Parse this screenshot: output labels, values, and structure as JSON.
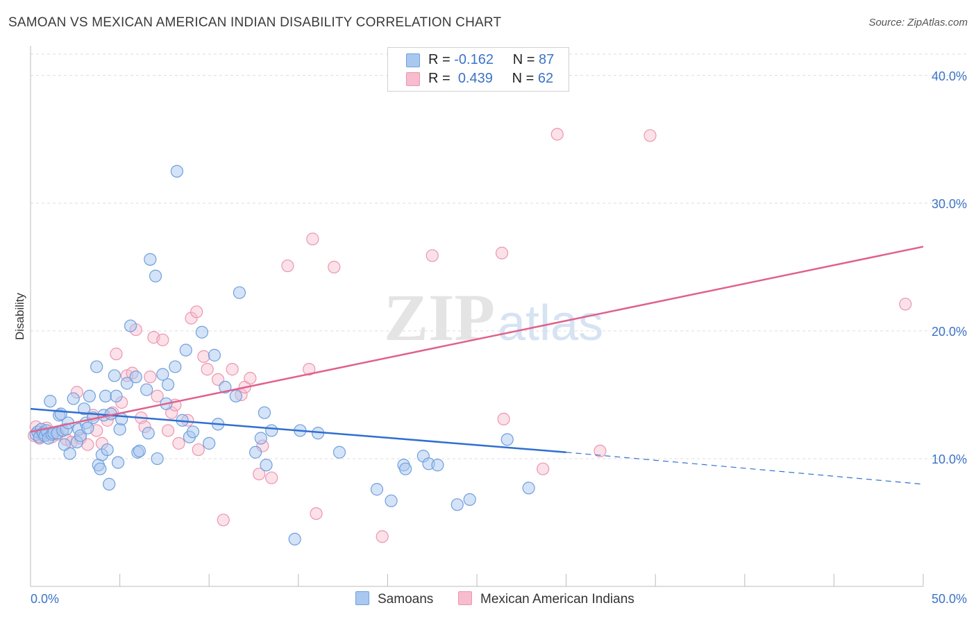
{
  "title": "SAMOAN VS MEXICAN AMERICAN INDIAN DISABILITY CORRELATION CHART",
  "source": "Source: ZipAtlas.com",
  "watermark": {
    "zip": "ZIP",
    "atlas": "atlas"
  },
  "legend": {
    "samoan": {
      "r_label": "R =",
      "r_value": "-0.162",
      "n_label": "N =",
      "n_value": "87"
    },
    "mexican": {
      "r_label": "R =",
      "r_value": "0.439",
      "n_label": "N =",
      "n_value": "62"
    }
  },
  "colors": {
    "samoan_fill": "#a9c8f0",
    "samoan_stroke": "#6f9fdc",
    "samoan_line": "#2f6fd0",
    "mexican_fill": "#f7bccd",
    "mexican_stroke": "#ec95b0",
    "mexican_line": "#e0608c",
    "tick_label": "#3b73c6",
    "grid": "#dcdcdc"
  },
  "chart_data": {
    "type": "scatter",
    "title": "SAMOAN VS MEXICAN AMERICAN INDIAN DISABILITY CORRELATION CHART",
    "xlabel": "",
    "ylabel": "Disability",
    "xlim": [
      0,
      50
    ],
    "ylim": [
      0,
      42
    ],
    "x_tick_labels": [
      "0.0%",
      "50.0%"
    ],
    "y_ticks": [
      10,
      20,
      30,
      40
    ],
    "y_tick_labels": [
      "10.0%",
      "20.0%",
      "30.0%",
      "40.0%"
    ],
    "grid": true,
    "legend_position": "top-center",
    "series": [
      {
        "name": "Samoans",
        "points": [
          [
            0.3,
            11.9
          ],
          [
            0.4,
            12.1
          ],
          [
            0.5,
            11.7
          ],
          [
            0.6,
            12.3
          ],
          [
            0.7,
            12.0
          ],
          [
            0.8,
            11.8
          ],
          [
            0.9,
            12.2
          ],
          [
            1.0,
            11.6
          ],
          [
            1.1,
            14.5
          ],
          [
            1.2,
            11.9
          ],
          [
            1.3,
            12.0
          ],
          [
            1.5,
            12.0
          ],
          [
            1.6,
            13.4
          ],
          [
            1.7,
            13.5
          ],
          [
            1.8,
            12.2
          ],
          [
            1.9,
            11.1
          ],
          [
            2.0,
            12.3
          ],
          [
            2.1,
            12.8
          ],
          [
            2.2,
            10.4
          ],
          [
            2.4,
            14.7
          ],
          [
            2.6,
            11.3
          ],
          [
            2.7,
            12.3
          ],
          [
            2.8,
            11.8
          ],
          [
            3.0,
            13.9
          ],
          [
            3.1,
            12.8
          ],
          [
            3.2,
            12.4
          ],
          [
            3.3,
            14.9
          ],
          [
            3.5,
            13.2
          ],
          [
            3.7,
            17.2
          ],
          [
            3.8,
            9.5
          ],
          [
            3.9,
            9.2
          ],
          [
            4.0,
            10.3
          ],
          [
            4.1,
            13.4
          ],
          [
            4.2,
            14.9
          ],
          [
            4.3,
            10.7
          ],
          [
            4.4,
            8.0
          ],
          [
            4.5,
            13.5
          ],
          [
            4.7,
            16.5
          ],
          [
            4.8,
            14.9
          ],
          [
            4.9,
            9.7
          ],
          [
            5.0,
            12.3
          ],
          [
            5.1,
            13.1
          ],
          [
            5.4,
            15.9
          ],
          [
            5.6,
            20.4
          ],
          [
            5.9,
            16.4
          ],
          [
            6.0,
            10.5
          ],
          [
            6.1,
            10.6
          ],
          [
            6.5,
            15.4
          ],
          [
            6.6,
            12.0
          ],
          [
            6.7,
            25.6
          ],
          [
            7.0,
            24.3
          ],
          [
            7.1,
            10.0
          ],
          [
            7.4,
            16.6
          ],
          [
            7.6,
            14.3
          ],
          [
            7.7,
            15.8
          ],
          [
            8.1,
            17.2
          ],
          [
            8.2,
            32.5
          ],
          [
            8.5,
            13.0
          ],
          [
            8.7,
            18.5
          ],
          [
            8.9,
            11.7
          ],
          [
            9.1,
            12.1
          ],
          [
            9.6,
            19.9
          ],
          [
            10.0,
            11.2
          ],
          [
            10.3,
            18.1
          ],
          [
            10.5,
            12.7
          ],
          [
            10.9,
            15.6
          ],
          [
            11.5,
            14.9
          ],
          [
            11.7,
            23.0
          ],
          [
            12.6,
            10.5
          ],
          [
            12.9,
            11.6
          ],
          [
            13.1,
            13.6
          ],
          [
            13.2,
            9.5
          ],
          [
            13.5,
            12.2
          ],
          [
            14.8,
            3.7
          ],
          [
            15.1,
            12.2
          ],
          [
            16.1,
            12.0
          ],
          [
            17.3,
            10.5
          ],
          [
            19.4,
            7.6
          ],
          [
            20.2,
            6.7
          ],
          [
            20.9,
            9.5
          ],
          [
            21.0,
            9.2
          ],
          [
            22.0,
            10.2
          ],
          [
            22.3,
            9.6
          ],
          [
            22.8,
            9.5
          ],
          [
            23.9,
            6.4
          ],
          [
            24.6,
            6.8
          ],
          [
            26.7,
            11.5
          ],
          [
            27.9,
            7.7
          ]
        ],
        "trend": {
          "x0": 0,
          "y0": 13.9,
          "x1": 30,
          "y1": 10.5,
          "dashed_to_x": 50,
          "dashed_to_y": 8.0
        }
      },
      {
        "name": "Mexican American Indians",
        "points": [
          [
            0.2,
            11.8
          ],
          [
            0.3,
            12.5
          ],
          [
            0.5,
            11.6
          ],
          [
            0.7,
            11.8
          ],
          [
            0.9,
            12.4
          ],
          [
            1.2,
            11.7
          ],
          [
            1.5,
            11.9
          ],
          [
            1.8,
            12.2
          ],
          [
            2.0,
            11.5
          ],
          [
            2.3,
            11.3
          ],
          [
            2.6,
            15.2
          ],
          [
            2.8,
            11.6
          ],
          [
            3.2,
            11.1
          ],
          [
            3.5,
            13.4
          ],
          [
            3.7,
            12.2
          ],
          [
            4.0,
            11.2
          ],
          [
            4.3,
            13.0
          ],
          [
            4.6,
            13.6
          ],
          [
            4.8,
            18.2
          ],
          [
            5.1,
            14.4
          ],
          [
            5.4,
            16.5
          ],
          [
            5.7,
            16.7
          ],
          [
            5.9,
            20.1
          ],
          [
            6.2,
            13.2
          ],
          [
            6.4,
            12.5
          ],
          [
            6.7,
            16.4
          ],
          [
            6.9,
            19.5
          ],
          [
            7.1,
            14.9
          ],
          [
            7.4,
            19.3
          ],
          [
            7.7,
            12.2
          ],
          [
            7.9,
            13.6
          ],
          [
            8.1,
            14.2
          ],
          [
            8.3,
            11.2
          ],
          [
            8.8,
            13.0
          ],
          [
            9.0,
            21.0
          ],
          [
            9.3,
            21.5
          ],
          [
            9.4,
            10.7
          ],
          [
            9.7,
            18.0
          ],
          [
            9.9,
            17.0
          ],
          [
            10.5,
            16.2
          ],
          [
            10.8,
            5.2
          ],
          [
            11.3,
            17.0
          ],
          [
            11.8,
            15.0
          ],
          [
            12.0,
            15.6
          ],
          [
            12.3,
            16.3
          ],
          [
            12.8,
            8.8
          ],
          [
            13.0,
            11.0
          ],
          [
            13.5,
            8.5
          ],
          [
            14.4,
            25.1
          ],
          [
            15.6,
            17.0
          ],
          [
            15.8,
            27.2
          ],
          [
            16.0,
            5.7
          ],
          [
            17.0,
            25.0
          ],
          [
            19.7,
            3.9
          ],
          [
            22.5,
            25.9
          ],
          [
            26.4,
            26.1
          ],
          [
            26.5,
            13.1
          ],
          [
            28.7,
            9.2
          ],
          [
            29.5,
            35.4
          ],
          [
            31.9,
            10.6
          ],
          [
            34.7,
            35.3
          ],
          [
            49.0,
            22.1
          ]
        ],
        "trend": {
          "x0": 0,
          "y0": 12.1,
          "x1": 50,
          "y1": 26.6
        }
      }
    ]
  }
}
